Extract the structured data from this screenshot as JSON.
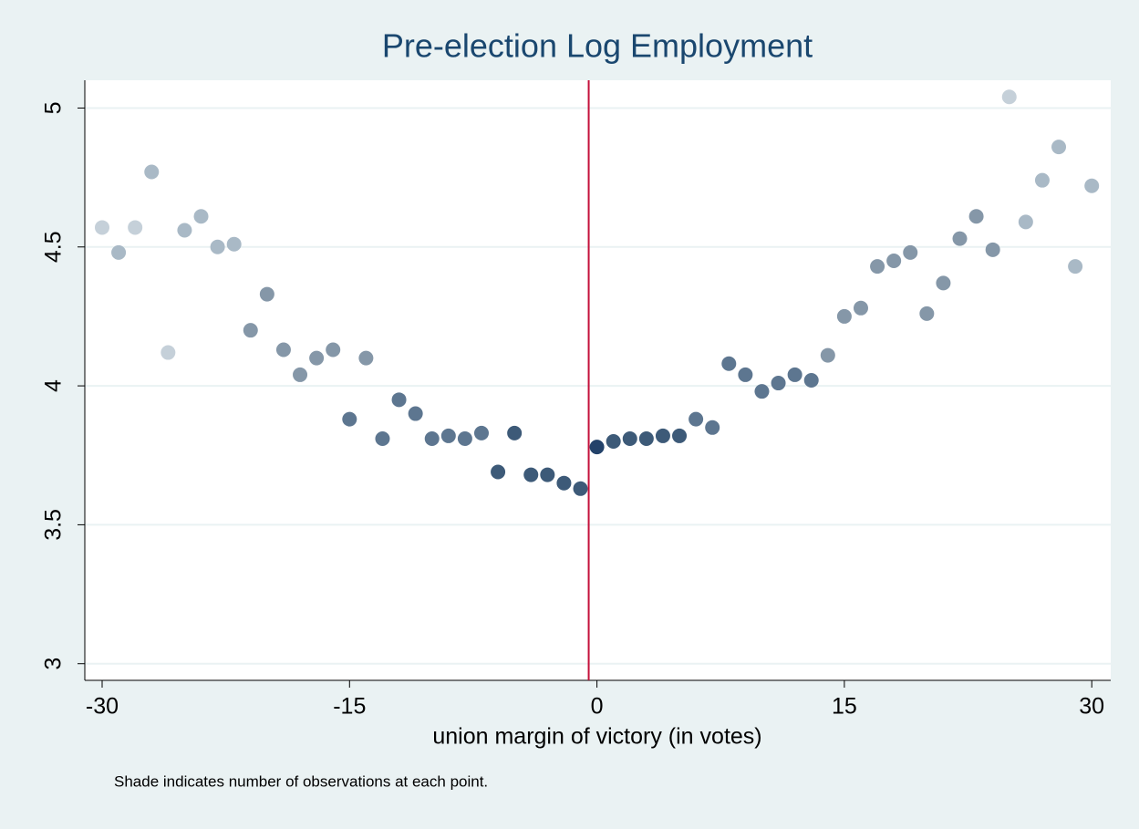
{
  "chart_data": {
    "type": "scatter",
    "title": "Pre-election Log Employment",
    "x_label": "union margin of victory (in votes)",
    "note": "Shade indicates number of observations at each point.",
    "xlim": [
      -31.05,
      31.15
    ],
    "ylim": [
      2.94,
      5.1
    ],
    "xticks": [
      -30,
      -15,
      0,
      15,
      30
    ],
    "yticks": [
      3,
      3.5,
      4,
      4.5,
      5
    ],
    "grid": true,
    "vline": {
      "value": -0.5,
      "color": "#c4103a"
    },
    "series": [
      {
        "x": [
          -30,
          -29,
          -28,
          -27,
          -26,
          -25,
          -24,
          -23,
          -22,
          -21,
          -20,
          -19,
          -18,
          -17,
          -16,
          -15,
          -14,
          -13,
          -12,
          -11,
          -10,
          -9,
          -8,
          -7,
          -6,
          -5,
          -4,
          -3,
          -2,
          -1,
          0,
          1,
          2,
          3,
          4,
          5,
          6,
          7,
          8,
          9,
          10,
          11,
          12,
          13,
          14,
          15,
          16,
          17,
          18,
          19,
          20,
          21,
          22,
          23,
          24,
          25,
          26,
          27,
          28,
          29,
          30
        ],
        "values": [
          4.57,
          4.48,
          4.57,
          4.77,
          4.12,
          4.56,
          4.61,
          4.5,
          4.51,
          4.2,
          4.33,
          4.13,
          4.04,
          4.1,
          4.13,
          3.88,
          4.1,
          3.81,
          3.95,
          3.9,
          3.81,
          3.82,
          3.81,
          3.83,
          3.69,
          3.83,
          3.68,
          3.68,
          3.65,
          3.63,
          3.78,
          3.8,
          3.81,
          3.81,
          3.82,
          3.82,
          3.88,
          3.85,
          4.08,
          4.04,
          3.98,
          4.01,
          4.04,
          4.02,
          4.11,
          4.25,
          4.28,
          4.43,
          4.45,
          4.48,
          4.26,
          4.37,
          4.53,
          4.61,
          4.49,
          5.04,
          4.59,
          4.74,
          4.86,
          4.43,
          4.72
        ],
        "colors": [
          "#c5d0d9",
          "#a9b9c6",
          "#c5d0d9",
          "#a9b9c6",
          "#c5d0d9",
          "#a9b9c6",
          "#a9b9c6",
          "#a9b9c6",
          "#a9b9c6",
          "#8597a8",
          "#8597a8",
          "#8597a8",
          "#8597a8",
          "#8597a8",
          "#8597a8",
          "#5d7690",
          "#8597a8",
          "#5d7690",
          "#5d7690",
          "#5d7690",
          "#5d7690",
          "#5d7690",
          "#5d7690",
          "#5d7690",
          "#3d5a78",
          "#3d5a78",
          "#3d5a78",
          "#3d5a78",
          "#3d5a78",
          "#3d5a78",
          "#23426a",
          "#3d5a78",
          "#3d5a78",
          "#3d5a78",
          "#3d5a78",
          "#3d5a78",
          "#5d7690",
          "#5d7690",
          "#5d7690",
          "#5d7690",
          "#5d7690",
          "#5d7690",
          "#5d7690",
          "#5d7690",
          "#8597a8",
          "#8597a8",
          "#8597a8",
          "#8597a8",
          "#8597a8",
          "#8597a8",
          "#8597a8",
          "#8597a8",
          "#8597a8",
          "#8597a8",
          "#8597a8",
          "#c5d0d9",
          "#a9b9c6",
          "#a9b9c6",
          "#a9b9c6",
          "#a9b9c6",
          "#a9b9c6"
        ]
      }
    ]
  }
}
